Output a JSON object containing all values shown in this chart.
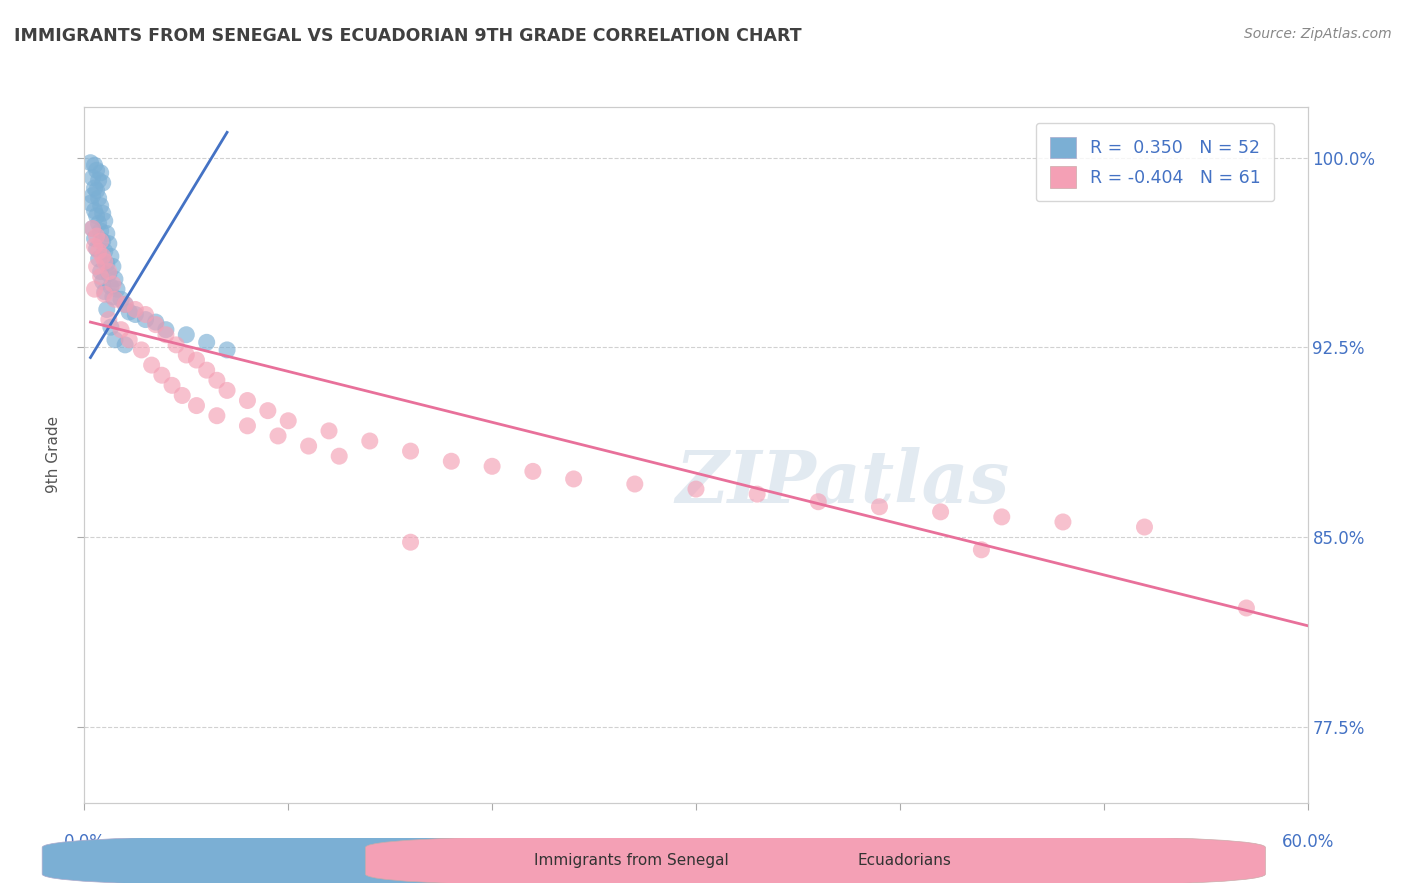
{
  "title": "IMMIGRANTS FROM SENEGAL VS ECUADORIAN 9TH GRADE CORRELATION CHART",
  "source": "Source: ZipAtlas.com",
  "ylabel": "9th Grade",
  "ytick_labels": [
    "77.5%",
    "85.0%",
    "92.5%",
    "100.0%"
  ],
  "ytick_values": [
    0.775,
    0.85,
    0.925,
    1.0
  ],
  "xmin": 0.0,
  "xmax": 0.6,
  "ymin": 0.745,
  "ymax": 1.02,
  "watermark": "ZIPatlas",
  "legend_row1": "R =  0.350   N = 52",
  "legend_row2": "R = -0.404   N = 61",
  "blue_scatter": [
    [
      0.003,
      0.998
    ],
    [
      0.005,
      0.997
    ],
    [
      0.006,
      0.995
    ],
    [
      0.008,
      0.994
    ],
    [
      0.004,
      0.992
    ],
    [
      0.007,
      0.991
    ],
    [
      0.009,
      0.99
    ],
    [
      0.005,
      0.988
    ],
    [
      0.006,
      0.987
    ],
    [
      0.004,
      0.985
    ],
    [
      0.007,
      0.984
    ],
    [
      0.003,
      0.982
    ],
    [
      0.008,
      0.981
    ],
    [
      0.005,
      0.979
    ],
    [
      0.009,
      0.978
    ],
    [
      0.006,
      0.977
    ],
    [
      0.01,
      0.975
    ],
    [
      0.007,
      0.974
    ],
    [
      0.004,
      0.972
    ],
    [
      0.008,
      0.971
    ],
    [
      0.011,
      0.97
    ],
    [
      0.005,
      0.968
    ],
    [
      0.009,
      0.967
    ],
    [
      0.012,
      0.966
    ],
    [
      0.006,
      0.964
    ],
    [
      0.01,
      0.963
    ],
    [
      0.013,
      0.961
    ],
    [
      0.007,
      0.96
    ],
    [
      0.011,
      0.958
    ],
    [
      0.014,
      0.957
    ],
    [
      0.008,
      0.955
    ],
    [
      0.012,
      0.954
    ],
    [
      0.015,
      0.952
    ],
    [
      0.009,
      0.951
    ],
    [
      0.013,
      0.949
    ],
    [
      0.016,
      0.948
    ],
    [
      0.01,
      0.947
    ],
    [
      0.014,
      0.945
    ],
    [
      0.018,
      0.944
    ],
    [
      0.02,
      0.942
    ],
    [
      0.011,
      0.94
    ],
    [
      0.022,
      0.939
    ],
    [
      0.025,
      0.938
    ],
    [
      0.03,
      0.936
    ],
    [
      0.035,
      0.935
    ],
    [
      0.013,
      0.933
    ],
    [
      0.04,
      0.932
    ],
    [
      0.05,
      0.93
    ],
    [
      0.015,
      0.928
    ],
    [
      0.06,
      0.927
    ],
    [
      0.02,
      0.926
    ],
    [
      0.07,
      0.924
    ]
  ],
  "pink_scatter": [
    [
      0.004,
      0.972
    ],
    [
      0.006,
      0.969
    ],
    [
      0.008,
      0.967
    ],
    [
      0.005,
      0.965
    ],
    [
      0.007,
      0.963
    ],
    [
      0.009,
      0.961
    ],
    [
      0.01,
      0.959
    ],
    [
      0.006,
      0.957
    ],
    [
      0.012,
      0.955
    ],
    [
      0.008,
      0.953
    ],
    [
      0.014,
      0.95
    ],
    [
      0.005,
      0.948
    ],
    [
      0.01,
      0.946
    ],
    [
      0.015,
      0.944
    ],
    [
      0.02,
      0.942
    ],
    [
      0.025,
      0.94
    ],
    [
      0.03,
      0.938
    ],
    [
      0.012,
      0.936
    ],
    [
      0.035,
      0.934
    ],
    [
      0.018,
      0.932
    ],
    [
      0.04,
      0.93
    ],
    [
      0.022,
      0.928
    ],
    [
      0.045,
      0.926
    ],
    [
      0.028,
      0.924
    ],
    [
      0.05,
      0.922
    ],
    [
      0.055,
      0.92
    ],
    [
      0.033,
      0.918
    ],
    [
      0.06,
      0.916
    ],
    [
      0.038,
      0.914
    ],
    [
      0.065,
      0.912
    ],
    [
      0.043,
      0.91
    ],
    [
      0.07,
      0.908
    ],
    [
      0.048,
      0.906
    ],
    [
      0.08,
      0.904
    ],
    [
      0.055,
      0.902
    ],
    [
      0.09,
      0.9
    ],
    [
      0.065,
      0.898
    ],
    [
      0.1,
      0.896
    ],
    [
      0.08,
      0.894
    ],
    [
      0.12,
      0.892
    ],
    [
      0.095,
      0.89
    ],
    [
      0.14,
      0.888
    ],
    [
      0.11,
      0.886
    ],
    [
      0.16,
      0.884
    ],
    [
      0.125,
      0.882
    ],
    [
      0.18,
      0.88
    ],
    [
      0.2,
      0.878
    ],
    [
      0.22,
      0.876
    ],
    [
      0.24,
      0.873
    ],
    [
      0.27,
      0.871
    ],
    [
      0.3,
      0.869
    ],
    [
      0.33,
      0.867
    ],
    [
      0.36,
      0.864
    ],
    [
      0.39,
      0.862
    ],
    [
      0.42,
      0.86
    ],
    [
      0.45,
      0.858
    ],
    [
      0.48,
      0.856
    ],
    [
      0.52,
      0.854
    ],
    [
      0.16,
      0.848
    ],
    [
      0.44,
      0.845
    ],
    [
      0.57,
      0.822
    ]
  ],
  "blue_line": {
    "x0": 0.003,
    "y0": 0.921,
    "x1": 0.07,
    "y1": 1.01
  },
  "pink_line": {
    "x0": 0.003,
    "y0": 0.935,
    "x1": 0.6,
    "y1": 0.815
  },
  "blue_color": "#7bafd4",
  "pink_color": "#f4a0b5",
  "blue_line_color": "#4472c4",
  "pink_line_color": "#e8709a",
  "grid_color": "#cccccc",
  "title_color": "#404040",
  "axis_label_color": "#4472c4",
  "source_color": "#888888"
}
